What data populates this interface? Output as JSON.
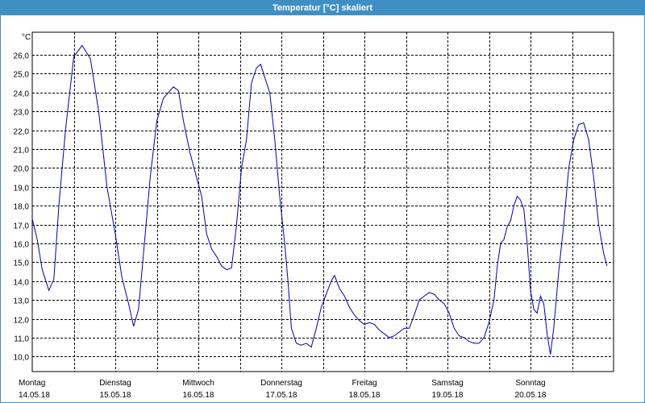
{
  "window": {
    "title": "Temperatur [°C] skaliert"
  },
  "chart_data": {
    "type": "line",
    "title": "Temperatur [°C] skaliert",
    "ylabel": "°C",
    "ylim": [
      9.2,
      27.2
    ],
    "xlim": [
      0,
      7
    ],
    "grid": true,
    "legend": "none",
    "y_ticks": [
      10,
      11,
      12,
      13,
      14,
      15,
      16,
      17,
      18,
      19,
      20,
      21,
      22,
      23,
      24,
      25,
      26
    ],
    "y_tick_labels": [
      "10,0",
      "11,0",
      "12,0",
      "13,0",
      "14,0",
      "15,0",
      "16,0",
      "17,0",
      "18,0",
      "19,0",
      "20,0",
      "21,0",
      "22,0",
      "23,0",
      "24,0",
      "25,0",
      "26,0"
    ],
    "x_tick_labels": [
      {
        "day": "Montag",
        "date": "14.05.18"
      },
      {
        "day": "Dienstag",
        "date": "15.05.18"
      },
      {
        "day": "Mittwoch",
        "date": "16.05.18"
      },
      {
        "day": "Donnerstag",
        "date": "17.05.18"
      },
      {
        "day": "Freitag",
        "date": "18.05.18"
      },
      {
        "day": "Samstag",
        "date": "19.05.18"
      },
      {
        "day": "Sonntag",
        "date": "20.05.18"
      }
    ],
    "series": [
      {
        "color": "#0000aa",
        "x_unit": "days since 14.05.18 00:00",
        "points": [
          [
            0.0,
            17.3
          ],
          [
            0.06,
            16.2
          ],
          [
            0.12,
            14.6
          ],
          [
            0.2,
            13.5
          ],
          [
            0.26,
            14.1
          ],
          [
            0.32,
            18.0
          ],
          [
            0.4,
            22.0
          ],
          [
            0.5,
            25.9
          ],
          [
            0.6,
            26.5
          ],
          [
            0.7,
            25.8
          ],
          [
            0.8,
            23.0
          ],
          [
            0.9,
            19.0
          ],
          [
            1.0,
            16.5
          ],
          [
            1.08,
            14.2
          ],
          [
            1.16,
            12.8
          ],
          [
            1.22,
            11.6
          ],
          [
            1.28,
            12.5
          ],
          [
            1.35,
            16.0
          ],
          [
            1.42,
            19.5
          ],
          [
            1.5,
            22.5
          ],
          [
            1.58,
            23.7
          ],
          [
            1.64,
            24.0
          ],
          [
            1.7,
            24.3
          ],
          [
            1.76,
            24.1
          ],
          [
            1.82,
            22.5
          ],
          [
            1.9,
            20.8
          ],
          [
            1.96,
            19.8
          ],
          [
            2.04,
            18.5
          ],
          [
            2.1,
            16.5
          ],
          [
            2.16,
            15.7
          ],
          [
            2.22,
            15.3
          ],
          [
            2.28,
            14.8
          ],
          [
            2.34,
            14.6
          ],
          [
            2.4,
            14.7
          ],
          [
            2.46,
            17.0
          ],
          [
            2.52,
            20.0
          ],
          [
            2.58,
            21.5
          ],
          [
            2.64,
            24.5
          ],
          [
            2.7,
            25.3
          ],
          [
            2.75,
            25.5
          ],
          [
            2.8,
            24.8
          ],
          [
            2.86,
            24.0
          ],
          [
            2.92,
            21.5
          ],
          [
            2.98,
            18.5
          ],
          [
            3.04,
            16.0
          ],
          [
            3.08,
            14.0
          ],
          [
            3.12,
            11.5
          ],
          [
            3.18,
            10.7
          ],
          [
            3.24,
            10.6
          ],
          [
            3.3,
            10.7
          ],
          [
            3.36,
            10.5
          ],
          [
            3.42,
            11.5
          ],
          [
            3.48,
            12.6
          ],
          [
            3.54,
            13.3
          ],
          [
            3.6,
            14.0
          ],
          [
            3.64,
            14.3
          ],
          [
            3.7,
            13.6
          ],
          [
            3.76,
            13.2
          ],
          [
            3.82,
            12.6
          ],
          [
            3.88,
            12.2
          ],
          [
            3.94,
            11.9
          ],
          [
            4.0,
            11.7
          ],
          [
            4.06,
            11.8
          ],
          [
            4.12,
            11.7
          ],
          [
            4.18,
            11.4
          ],
          [
            4.24,
            11.2
          ],
          [
            4.3,
            11.0
          ],
          [
            4.36,
            11.1
          ],
          [
            4.42,
            11.3
          ],
          [
            4.48,
            11.5
          ],
          [
            4.54,
            11.5
          ],
          [
            4.6,
            12.2
          ],
          [
            4.66,
            13.0
          ],
          [
            4.72,
            13.2
          ],
          [
            4.78,
            13.4
          ],
          [
            4.84,
            13.3
          ],
          [
            4.9,
            13.0
          ],
          [
            4.96,
            12.8
          ],
          [
            5.02,
            12.3
          ],
          [
            5.08,
            11.5
          ],
          [
            5.14,
            11.1
          ],
          [
            5.2,
            11.0
          ],
          [
            5.26,
            10.8
          ],
          [
            5.32,
            10.7
          ],
          [
            5.38,
            10.7
          ],
          [
            5.44,
            11.0
          ],
          [
            5.5,
            11.8
          ],
          [
            5.56,
            13.0
          ],
          [
            5.6,
            14.8
          ],
          [
            5.64,
            16.0
          ],
          [
            5.68,
            16.2
          ],
          [
            5.72,
            16.9
          ],
          [
            5.76,
            17.2
          ],
          [
            5.8,
            18.0
          ],
          [
            5.84,
            18.5
          ],
          [
            5.88,
            18.3
          ],
          [
            5.92,
            17.8
          ],
          [
            5.96,
            16.0
          ],
          [
            6.0,
            13.5
          ],
          [
            6.04,
            12.5
          ],
          [
            6.08,
            12.3
          ],
          [
            6.12,
            13.2
          ],
          [
            6.16,
            12.8
          ],
          [
            6.2,
            11.2
          ],
          [
            6.24,
            10.1
          ],
          [
            6.28,
            11.5
          ],
          [
            6.34,
            14.5
          ],
          [
            6.4,
            17.0
          ],
          [
            6.46,
            20.0
          ],
          [
            6.52,
            21.5
          ],
          [
            6.58,
            22.3
          ],
          [
            6.64,
            22.4
          ],
          [
            6.7,
            21.5
          ],
          [
            6.76,
            19.5
          ],
          [
            6.82,
            17.0
          ],
          [
            6.88,
            15.5
          ],
          [
            6.92,
            14.8
          ]
        ]
      }
    ]
  }
}
